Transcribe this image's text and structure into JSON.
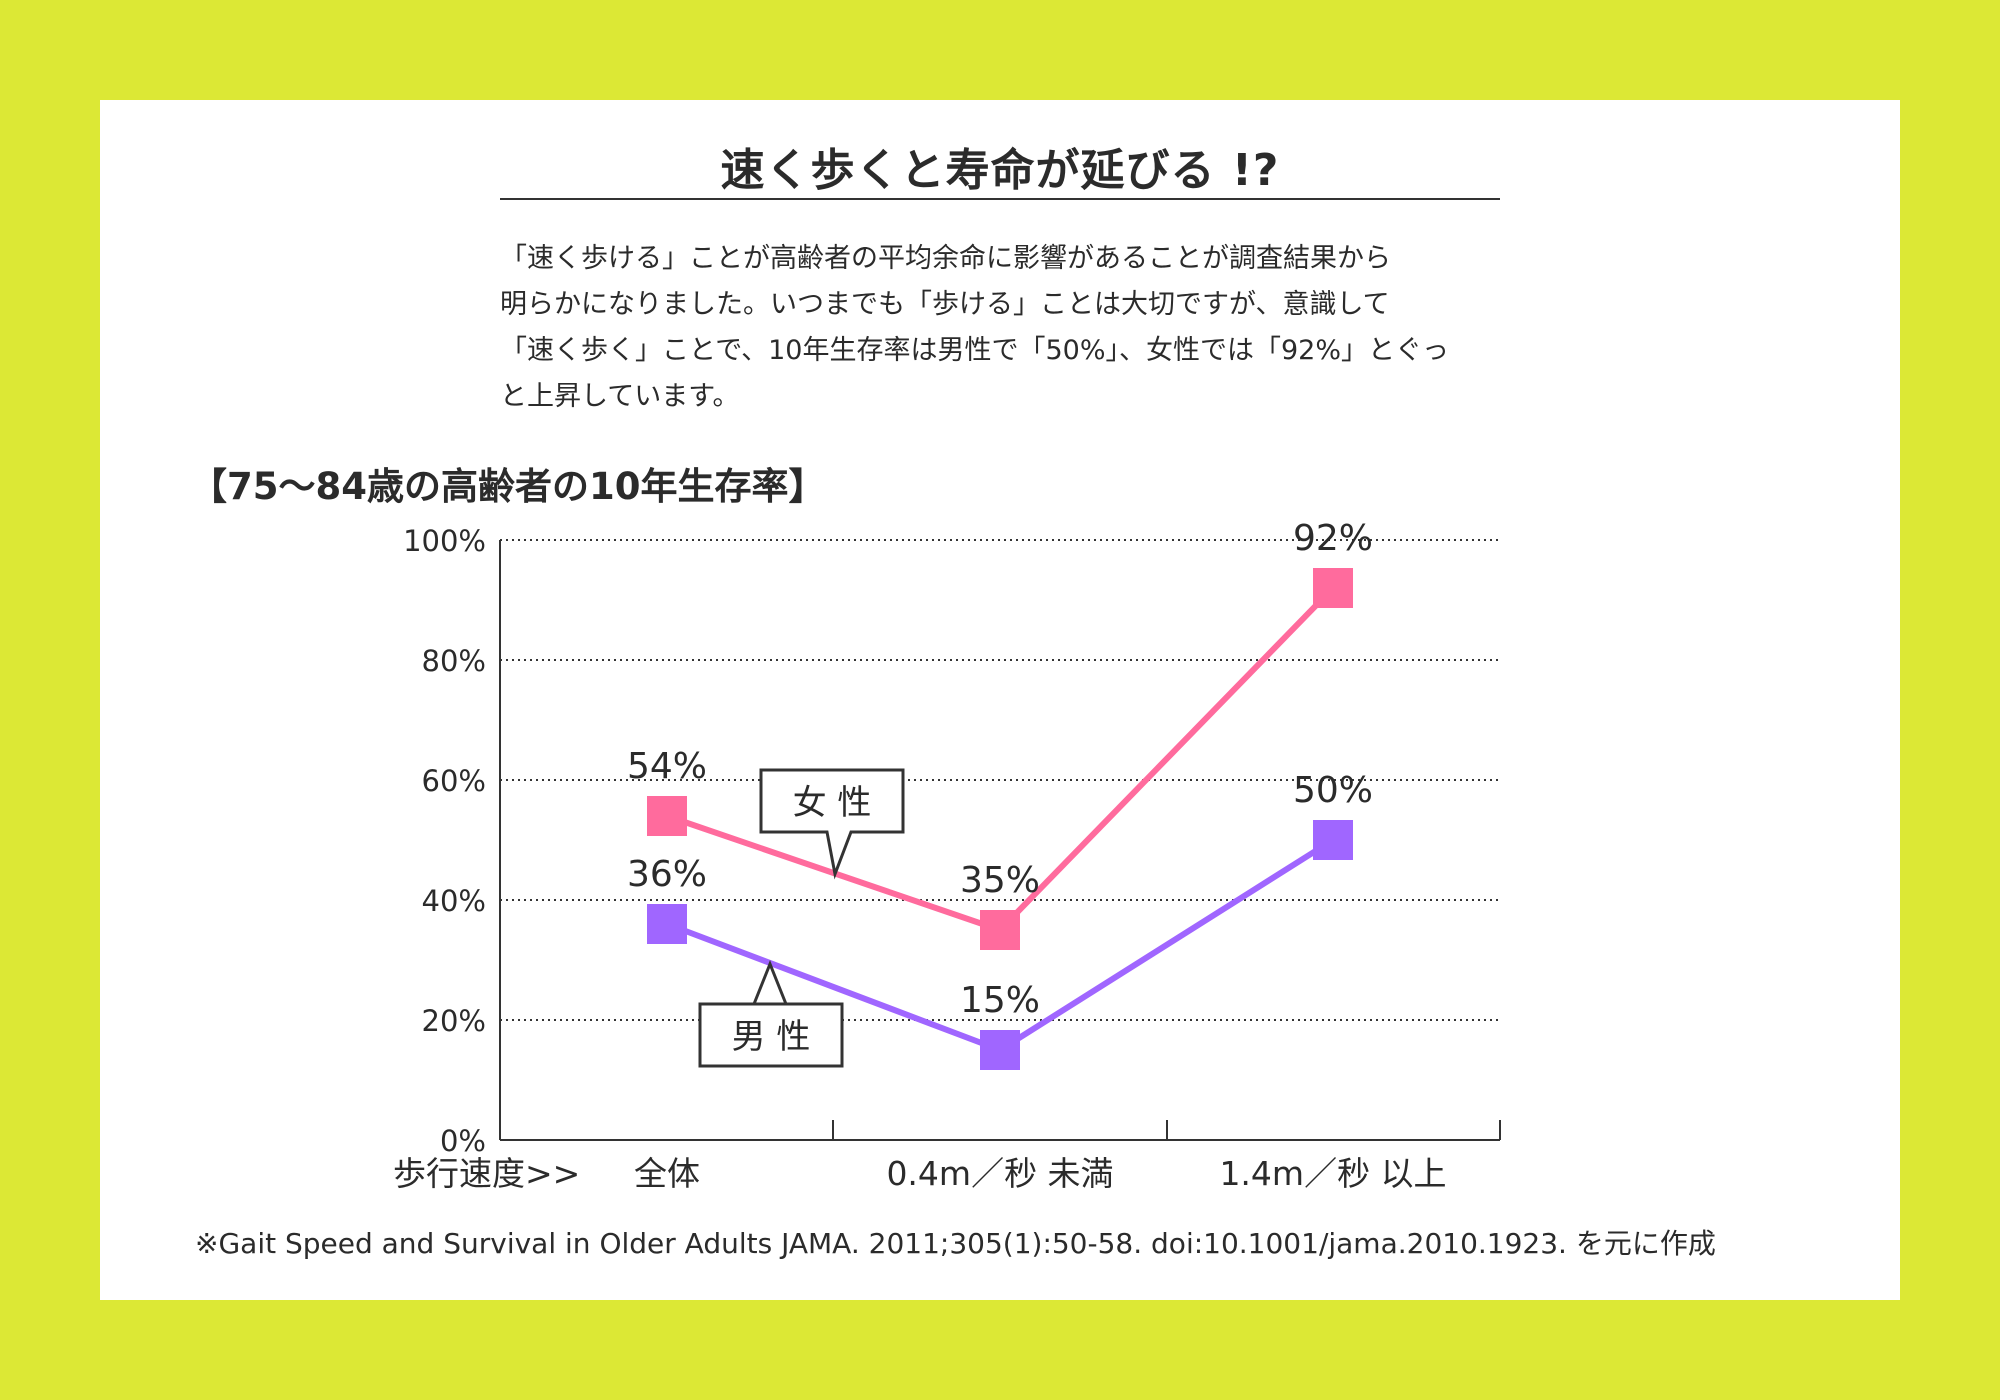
{
  "page": {
    "title": "速く歩くと寿命が延びる !?",
    "description_lines": [
      "「速く歩ける」ことが高齢者の平均余命に影響があることが調査結果から",
      "明らかになりました。いつまでも「歩ける」ことは大切ですが、意識して",
      "「速く歩く」ことで、10年生存率は男性で「50%」、女性では「92%」とぐっ",
      "と上昇しています。"
    ],
    "source_note": "※Gait Speed and Survival in Older Adults JAMA. 2011;305(1):50-58. doi:10.1001/jama.2010.1923. を元に作成"
  },
  "colors": {
    "background": "#dce835",
    "female": "#ff6b9d",
    "male": "#a066ff"
  },
  "chart_data": {
    "type": "line",
    "title": "【75～84歳の高齢者の10年生存率】",
    "xlabel": "歩行速度>>",
    "categories": [
      "全体",
      "0.4m／秒 未満",
      "1.4m／秒 以上"
    ],
    "ylim": [
      0,
      100
    ],
    "y_ticks": [
      0,
      20,
      40,
      60,
      80,
      100
    ],
    "y_tick_labels": [
      "0%",
      "20%",
      "40%",
      "60%",
      "80%",
      "100%"
    ],
    "grid": "dotted horizontal",
    "series": [
      {
        "name": "女 性",
        "values": [
          54,
          35,
          92
        ],
        "labels": [
          "54%",
          "35%",
          "92%"
        ],
        "color": "#ff6b9d"
      },
      {
        "name": "男 性",
        "values": [
          36,
          15,
          50
        ],
        "labels": [
          "36%",
          "15%",
          "50%"
        ],
        "color": "#a066ff"
      }
    ]
  }
}
